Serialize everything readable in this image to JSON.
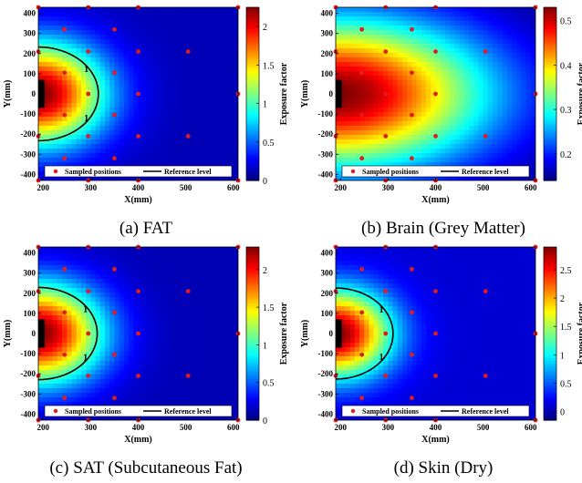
{
  "chart_data": [
    {
      "type": "heatmap",
      "caption": "(a) FAT",
      "xlabel": "X(mm)",
      "ylabel": "Y(mm)",
      "colorbar_label": "Exposure factor",
      "xlim": [
        190,
        610
      ],
      "ylim": [
        -430,
        430
      ],
      "xticks": [
        200,
        300,
        400,
        500,
        600
      ],
      "yticks": [
        -400,
        -300,
        -200,
        -100,
        0,
        100,
        200,
        300,
        400
      ],
      "clim": [
        0,
        2.25
      ],
      "cticks": [
        0,
        0.5,
        1,
        1.5,
        2
      ],
      "reference_level": 1,
      "contour_label": "1",
      "legend": [
        "Sampled positions",
        "Reference level"
      ],
      "legend_position": "bottom",
      "colormap": "jet"
    },
    {
      "type": "heatmap",
      "caption": "(b) Brain (Grey Matter)",
      "xlabel": "X(mm)",
      "ylabel": "Y(mm)",
      "colorbar_label": "Exposure factor",
      "xlim": [
        190,
        610
      ],
      "ylim": [
        -430,
        430
      ],
      "xticks": [
        200,
        300,
        400,
        500,
        600
      ],
      "yticks": [
        -400,
        -300,
        -200,
        -100,
        0,
        100,
        200,
        300,
        400
      ],
      "clim": [
        0.14,
        0.53
      ],
      "cticks": [
        0.2,
        0.3,
        0.4,
        0.5
      ],
      "reference_level": null,
      "contour_label": "",
      "legend": [
        "Sampled positions",
        "Reference level"
      ],
      "legend_position": "bottom",
      "colormap": "jet"
    },
    {
      "type": "heatmap",
      "caption": "(c) SAT (Subcutaneous Fat)",
      "xlabel": "X(mm)",
      "ylabel": "Y(mm)",
      "colorbar_label": "Exposure factor",
      "xlim": [
        190,
        610
      ],
      "ylim": [
        -430,
        430
      ],
      "xticks": [
        200,
        300,
        400,
        500,
        600
      ],
      "yticks": [
        -400,
        -300,
        -200,
        -100,
        0,
        100,
        200,
        300,
        400
      ],
      "clim": [
        0,
        2.3
      ],
      "cticks": [
        0,
        0.5,
        1,
        1.5,
        2
      ],
      "reference_level": 1,
      "contour_label": "1",
      "legend": [
        "Sampled positions",
        "Reference level"
      ],
      "legend_position": "bottom",
      "colormap": "jet"
    },
    {
      "type": "heatmap",
      "caption": "(d) Skin (Dry)",
      "xlabel": "X(mm)",
      "ylabel": "Y(mm)",
      "colorbar_label": "Exposure factor",
      "xlim": [
        190,
        610
      ],
      "ylim": [
        -430,
        430
      ],
      "xticks": [
        200,
        300,
        400,
        500,
        600
      ],
      "yticks": [
        -400,
        -300,
        -200,
        -100,
        0,
        100,
        200,
        300,
        400
      ],
      "clim": [
        -0.15,
        2.9
      ],
      "cticks": [
        0,
        0.5,
        1,
        1.5,
        2,
        2.5
      ],
      "reference_level": 1,
      "contour_label": "1",
      "legend": [
        "Sampled positions",
        "Reference level"
      ],
      "legend_position": "bottom",
      "colormap": "jet"
    }
  ],
  "sampled_positions": [
    {
      "x": 190,
      "y": 430
    },
    {
      "x": 295,
      "y": 430
    },
    {
      "x": 400,
      "y": 430
    },
    {
      "x": 610,
      "y": 430
    },
    {
      "x": 245,
      "y": 320
    },
    {
      "x": 350,
      "y": 320
    },
    {
      "x": 190,
      "y": 210
    },
    {
      "x": 295,
      "y": 210
    },
    {
      "x": 400,
      "y": 210
    },
    {
      "x": 505,
      "y": 210
    },
    {
      "x": 245,
      "y": 105
    },
    {
      "x": 350,
      "y": 105
    },
    {
      "x": 295,
      "y": 0
    },
    {
      "x": 400,
      "y": 0
    },
    {
      "x": 610,
      "y": 0
    },
    {
      "x": 245,
      "y": -105
    },
    {
      "x": 350,
      "y": -105
    },
    {
      "x": 190,
      "y": -210
    },
    {
      "x": 295,
      "y": -210
    },
    {
      "x": 400,
      "y": -210
    },
    {
      "x": 505,
      "y": -210
    },
    {
      "x": 245,
      "y": -320
    },
    {
      "x": 350,
      "y": -320
    },
    {
      "x": 190,
      "y": -430
    },
    {
      "x": 295,
      "y": -430
    },
    {
      "x": 400,
      "y": -430
    },
    {
      "x": 610,
      "y": -430
    }
  ]
}
